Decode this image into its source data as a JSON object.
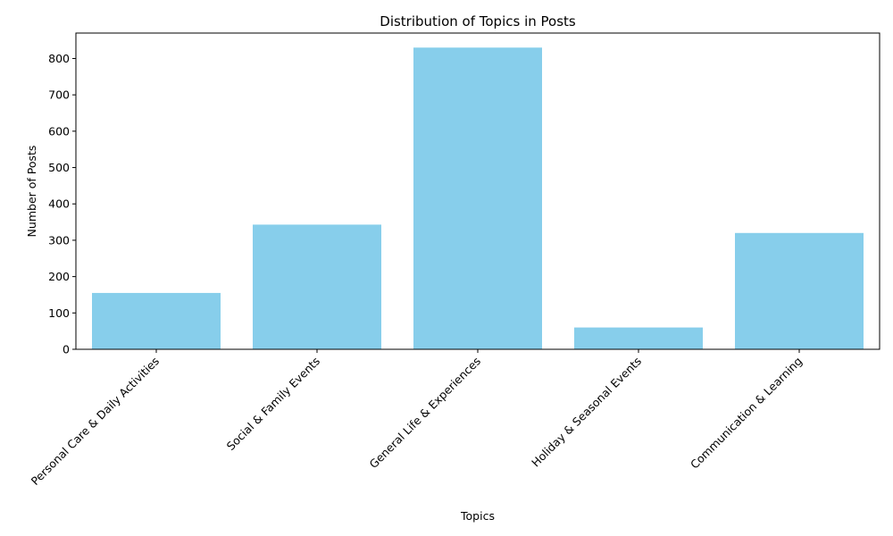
{
  "chart_data": {
    "type": "bar",
    "title": "Distribution of Topics in Posts",
    "xlabel": "Topics",
    "ylabel": "Number of Posts",
    "categories": [
      "Personal Care & Daily Activities",
      "Social & Family Events",
      "General Life & Experiences",
      "Holiday & Seasonal Events",
      "Communication & Learning"
    ],
    "values": [
      155,
      343,
      830,
      60,
      320
    ],
    "ylim": [
      0,
      870
    ],
    "yticks": [
      0,
      100,
      200,
      300,
      400,
      500,
      600,
      700,
      800
    ],
    "bar_color": "#87ceeb",
    "grid": false,
    "legend": "none"
  }
}
